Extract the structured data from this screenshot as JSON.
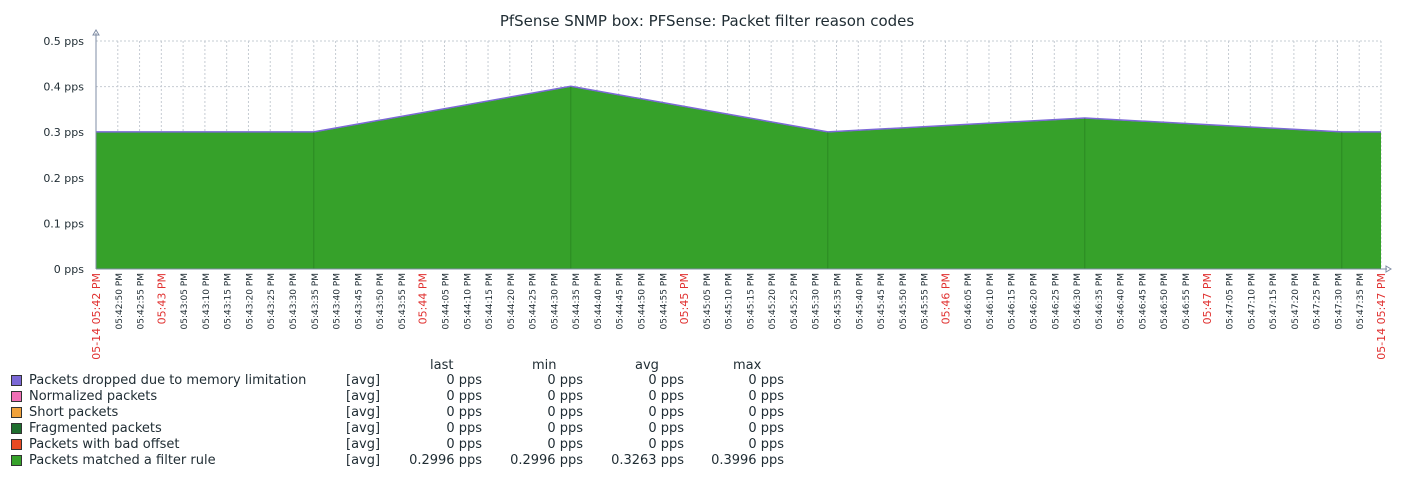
{
  "chart_data": {
    "type": "area",
    "title": "PfSense SNMP box: PFSense: Packet filter reason codes",
    "y_ticks": [
      "0 pps",
      "0.1 pps",
      "0.2 pps",
      "0.3 pps",
      "0.4 pps",
      "0.5 pps"
    ],
    "ylim": [
      0,
      0.5
    ],
    "grid": true,
    "x_range": [
      "05:42:45",
      "05:47:40"
    ],
    "x_minor_labels": [
      "05:42:50 PM",
      "05:42:55 PM",
      "05:43:05 PM",
      "05:43:10 PM",
      "05:43:15 PM",
      "05:43:20 PM",
      "05:43:25 PM",
      "05:43:30 PM",
      "05:43:35 PM",
      "05:43:40 PM",
      "05:43:45 PM",
      "05:43:50 PM",
      "05:43:55 PM",
      "05:44:05 PM",
      "05:44:10 PM",
      "05:44:15 PM",
      "05:44:20 PM",
      "05:44:25 PM",
      "05:44:30 PM",
      "05:44:35 PM",
      "05:44:40 PM",
      "05:44:45 PM",
      "05:44:50 PM",
      "05:44:55 PM",
      "05:45:05 PM",
      "05:45:10 PM",
      "05:45:15 PM",
      "05:45:20 PM",
      "05:45:25 PM",
      "05:45:30 PM",
      "05:45:35 PM",
      "05:45:40 PM",
      "05:45:45 PM",
      "05:45:50 PM",
      "05:45:55 PM",
      "05:46:05 PM",
      "05:46:10 PM",
      "05:46:15 PM",
      "05:46:20 PM",
      "05:46:25 PM",
      "05:46:30 PM",
      "05:46:35 PM",
      "05:46:40 PM",
      "05:46:45 PM",
      "05:46:50 PM",
      "05:46:55 PM",
      "05:47:05 PM",
      "05:47:10 PM",
      "05:47:15 PM",
      "05:47:20 PM",
      "05:47:25 PM",
      "05:47:30 PM",
      "05:47:35 PM"
    ],
    "x_major_labels": [
      {
        "time": "05:42:45",
        "label": "05-14 05:42 PM"
      },
      {
        "time": "05:43:00",
        "label": "05:43 PM"
      },
      {
        "time": "05:44:00",
        "label": "05:44 PM"
      },
      {
        "time": "05:45:00",
        "label": "05:45 PM"
      },
      {
        "time": "05:46:00",
        "label": "05:46 PM"
      },
      {
        "time": "05:47:00",
        "label": "05:47 PM"
      },
      {
        "time": "05:47:40",
        "label": "05-14 05:47 PM"
      }
    ],
    "x": [
      "05:42:45",
      "05:43:35",
      "05:44:34",
      "05:45:33",
      "05:46:32",
      "05:47:31",
      "05:47:40"
    ],
    "series": [
      {
        "name": "Packets dropped due to memory limitation",
        "color": "#7b68d6",
        "values": [
          0,
          0,
          0,
          0,
          0,
          0,
          0
        ]
      },
      {
        "name": "Normalized packets",
        "color": "#f06fb6",
        "values": [
          0,
          0,
          0,
          0,
          0,
          0,
          0
        ]
      },
      {
        "name": "Short packets",
        "color": "#f0a23c",
        "values": [
          0,
          0,
          0,
          0,
          0,
          0,
          0
        ]
      },
      {
        "name": "Fragmented packets",
        "color": "#1e6e2e",
        "values": [
          0,
          0,
          0,
          0,
          0,
          0,
          0
        ]
      },
      {
        "name": "Packets with bad offset",
        "color": "#e84a23",
        "values": [
          0,
          0,
          0,
          0,
          0,
          0,
          0
        ]
      },
      {
        "name": "Packets matched a filter rule",
        "color": "#36a12a",
        "values": [
          0.2996,
          0.2996,
          0.3996,
          0.2996,
          0.33,
          0.2996,
          0.2996
        ]
      }
    ],
    "colors": {
      "axis": "#7f8ca4",
      "grid": "#c6ccd3",
      "major_label": "#e0302f",
      "minor_label": "#1f2c33",
      "area_edge": "#7b68d6"
    }
  },
  "legend": {
    "headers": {
      "last": "last",
      "min": "min",
      "avg": "avg",
      "max": "max"
    },
    "rows": [
      {
        "name": "Packets dropped due to memory limitation",
        "func": "[avg]",
        "last": "0 pps",
        "min": "0 pps",
        "avg": "0 pps",
        "max": "0 pps"
      },
      {
        "name": "Normalized packets",
        "func": "[avg]",
        "last": "0 pps",
        "min": "0 pps",
        "avg": "0 pps",
        "max": "0 pps"
      },
      {
        "name": "Short packets",
        "func": "[avg]",
        "last": "0 pps",
        "min": "0 pps",
        "avg": "0 pps",
        "max": "0 pps"
      },
      {
        "name": "Fragmented packets",
        "func": "[avg]",
        "last": "0 pps",
        "min": "0 pps",
        "avg": "0 pps",
        "max": "0 pps"
      },
      {
        "name": "Packets with bad offset",
        "func": "[avg]",
        "last": "0 pps",
        "min": "0 pps",
        "avg": "0 pps",
        "max": "0 pps"
      },
      {
        "name": "Packets matched a filter rule",
        "func": "[avg]",
        "last": "0.2996 pps",
        "min": "0.2996 pps",
        "avg": "0.3263 pps",
        "max": "0.3996 pps"
      }
    ]
  }
}
